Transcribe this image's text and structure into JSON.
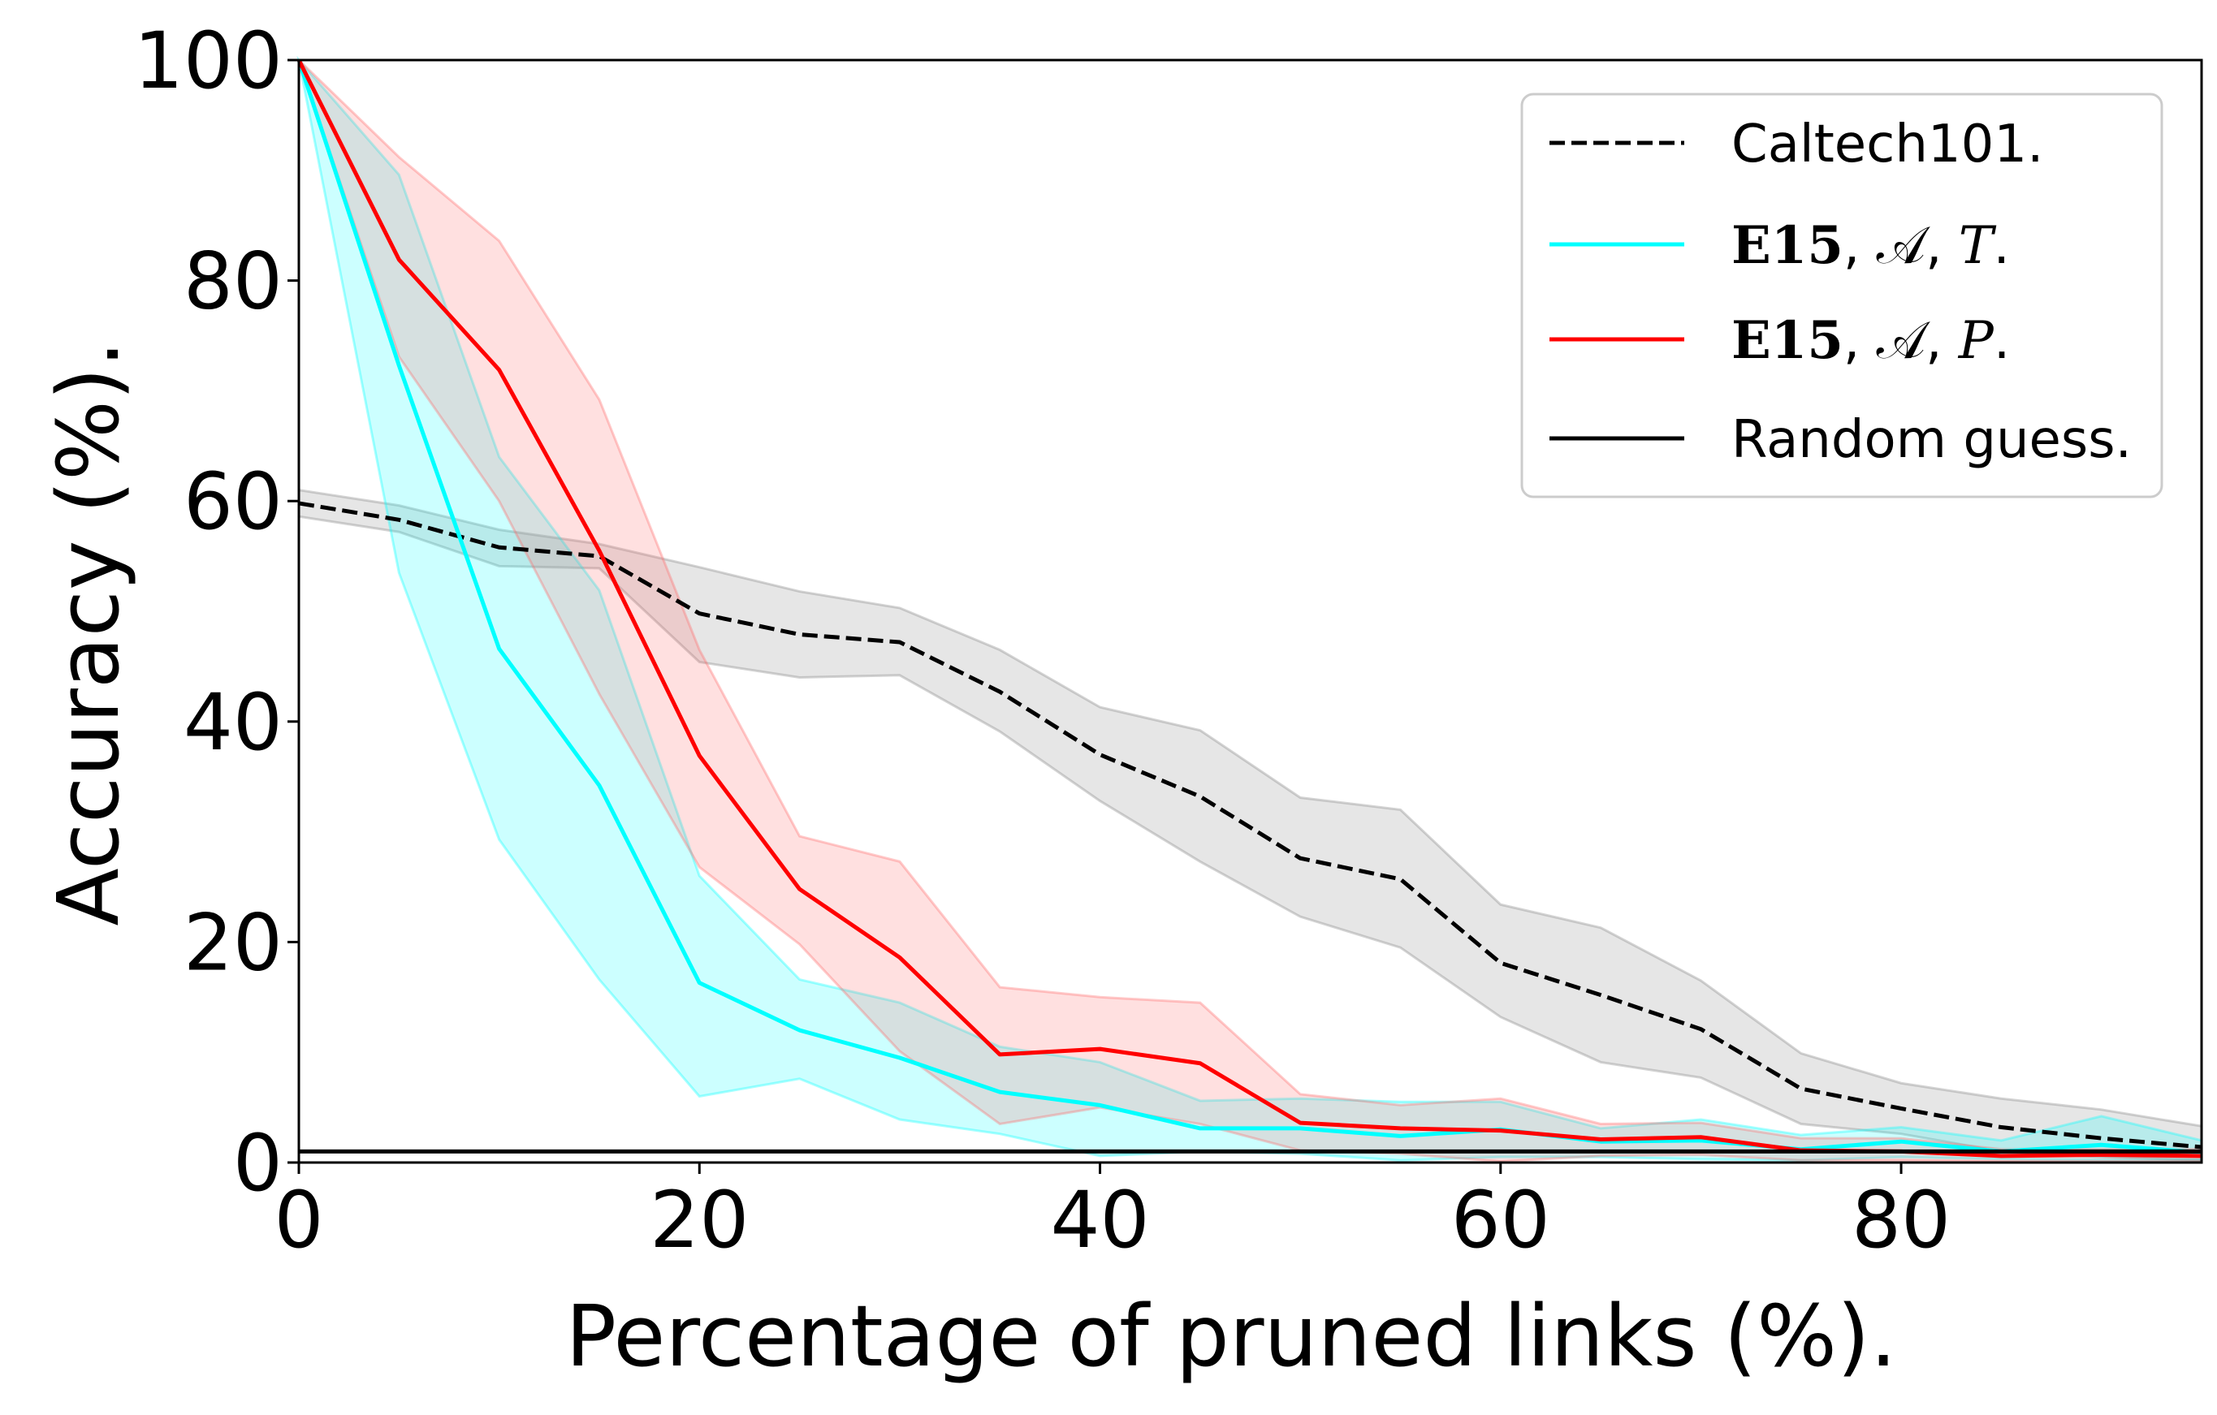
{
  "chart_data": {
    "type": "line",
    "title": "",
    "xlabel": "Percentage of pruned links (%).",
    "ylabel": "Accuracy (%).",
    "xlim": [
      0,
      95
    ],
    "ylim": [
      0,
      100
    ],
    "x_ticks": [
      0,
      20,
      40,
      60,
      80
    ],
    "y_ticks": [
      0,
      20,
      40,
      60,
      80,
      100
    ],
    "x_tick_labels": [
      "0",
      "20",
      "40",
      "60",
      "80"
    ],
    "y_tick_labels": [
      "0",
      "20",
      "40",
      "60",
      "80",
      "100"
    ],
    "grid": false,
    "legend_position": "top-right",
    "x": [
      0,
      5,
      10,
      15,
      20,
      25,
      30,
      35,
      40,
      45,
      50,
      55,
      60,
      65,
      70,
      75,
      80,
      85,
      90,
      95
    ],
    "series": [
      {
        "name": "Caltech101.",
        "color": "#000000",
        "band_color": "#808080",
        "style": "dashed",
        "values": [
          59.8,
          58.3,
          55.8,
          55.0,
          49.8,
          47.9,
          47.2,
          42.7,
          37.0,
          33.2,
          27.6,
          25.7,
          18.1,
          15.2,
          12.1,
          6.7,
          4.9,
          3.2,
          2.2,
          1.4
        ],
        "upper": [
          61.0,
          59.6,
          57.4,
          56.1,
          54.0,
          51.8,
          50.3,
          46.5,
          41.3,
          39.2,
          33.1,
          32.0,
          23.4,
          21.3,
          16.5,
          9.9,
          7.2,
          5.8,
          4.8,
          3.3
        ],
        "lower": [
          58.6,
          57.2,
          54.1,
          53.9,
          45.4,
          44.0,
          44.2,
          39.1,
          32.8,
          27.3,
          22.3,
          19.5,
          13.2,
          9.1,
          7.7,
          3.5,
          2.6,
          1.0,
          0.5,
          0.2
        ]
      },
      {
        "name_bold": "E15",
        "name_rest": ", 𝒜, ",
        "name_ital": "T",
        "name_end": ".",
        "color": "#00ffff",
        "band_color": "#00ffff",
        "style": "solid",
        "values": [
          100,
          72.3,
          46.6,
          34.2,
          16.3,
          12.0,
          9.5,
          6.4,
          5.2,
          3.1,
          3.1,
          2.4,
          3.0,
          1.9,
          2.0,
          1.2,
          1.9,
          1.0,
          1.6,
          0.9
        ],
        "upper": [
          100,
          89.6,
          64.0,
          51.9,
          26.0,
          16.6,
          14.5,
          10.5,
          9.1,
          5.6,
          5.8,
          5.5,
          5.5,
          3.1,
          3.9,
          2.5,
          3.2,
          2.0,
          4.2,
          2.0
        ],
        "lower": [
          100,
          53.5,
          29.3,
          16.6,
          6.0,
          7.6,
          3.9,
          2.6,
          0.6,
          1.0,
          0.8,
          0.2,
          0.5,
          0.5,
          0.3,
          0.2,
          0.5,
          0.3,
          0.2,
          0.2
        ]
      },
      {
        "name_bold": "E15",
        "name_rest": ", 𝒜, ",
        "name_ital": "P",
        "name_end": ".",
        "color": "#ff0000",
        "band_color": "#ff6666",
        "style": "solid",
        "values": [
          100,
          81.9,
          71.9,
          55.5,
          36.9,
          24.8,
          18.6,
          9.8,
          10.3,
          9.0,
          3.6,
          3.1,
          2.9,
          2.1,
          2.3,
          1.1,
          1.0,
          0.6,
          0.7,
          0.6
        ],
        "upper": [
          100,
          91.2,
          83.6,
          69.2,
          46.5,
          29.6,
          27.3,
          15.9,
          15.0,
          14.5,
          6.2,
          5.2,
          5.8,
          3.5,
          3.6,
          2.2,
          2.2,
          1.2,
          1.2,
          1.2
        ],
        "lower": [
          100,
          73.1,
          60.0,
          42.5,
          26.8,
          19.8,
          10.1,
          3.5,
          5.0,
          3.5,
          1.1,
          0.8,
          0.1,
          0.6,
          0.7,
          0.2,
          0.2,
          0.1,
          0.1,
          0.1
        ]
      },
      {
        "name": "Random guess.",
        "color": "#000000",
        "style": "solid",
        "constant": 1.0
      }
    ]
  }
}
